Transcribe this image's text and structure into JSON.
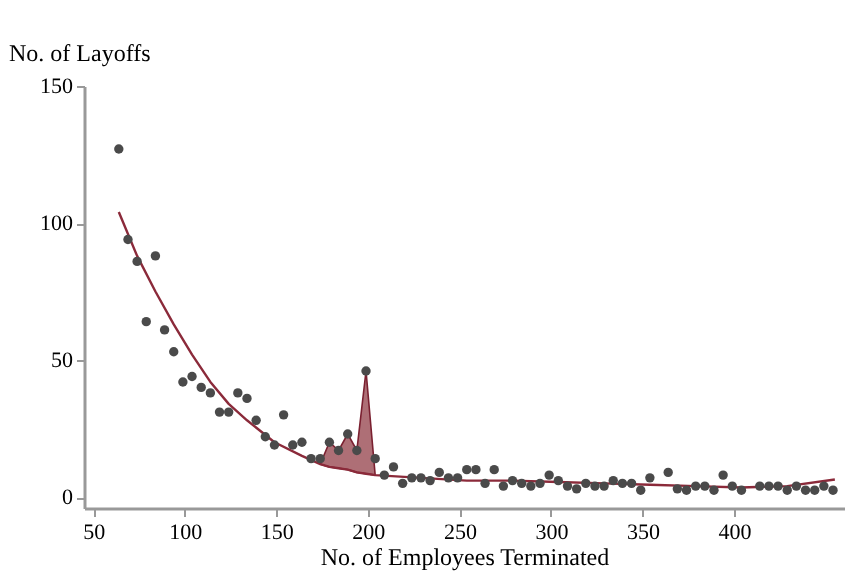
{
  "chart_data": {
    "type": "scatter",
    "xlabel": "No. of Employees Terminated",
    "ylabel": "No. of Layoffs",
    "xlim": [
      45,
      460
    ],
    "xticks": [
      50,
      100,
      150,
      200,
      250,
      300,
      350,
      400
    ],
    "ylim": [
      -4,
      150
    ],
    "yticks": [
      0,
      50,
      100,
      150
    ],
    "grid": false,
    "series": [
      {
        "marker": "circle",
        "color": "#4a4a4a",
        "x": [
          64,
          69,
          74,
          79,
          84,
          89,
          94,
          99,
          104,
          109,
          114,
          119,
          124,
          129,
          134,
          139,
          144,
          149,
          154,
          159,
          164,
          169,
          174,
          179,
          184,
          189,
          194,
          199,
          204,
          209,
          214,
          219,
          224,
          229,
          234,
          239,
          244,
          249,
          254,
          259,
          264,
          269,
          274,
          279,
          284,
          289,
          294,
          299,
          304,
          309,
          314,
          319,
          324,
          329,
          334,
          339,
          344,
          349,
          354,
          364,
          369,
          374,
          379,
          384,
          389,
          394,
          399,
          404,
          414,
          419,
          424,
          429,
          434,
          439,
          444,
          449,
          454
        ],
        "values": [
          127,
          94,
          86,
          64,
          88,
          61,
          53,
          42,
          44,
          40,
          38,
          31,
          31,
          38,
          36,
          28,
          22,
          19,
          30,
          19,
          20,
          14,
          14,
          20,
          17,
          23,
          17,
          46,
          14,
          8,
          11,
          5,
          7,
          7,
          6,
          9,
          7,
          7,
          10,
          10,
          5,
          10,
          4,
          6,
          5,
          4,
          5,
          8,
          6,
          4,
          3,
          5,
          4,
          4,
          6,
          5,
          5,
          2.5,
          7,
          9,
          3,
          2.5,
          4,
          4,
          2.5,
          8,
          4,
          2.5,
          4,
          4,
          4,
          2.5,
          4,
          2.5,
          2.5,
          4,
          2.5
        ]
      },
      {
        "type": "line",
        "color": "#8b2a3a",
        "x": [
          64,
          74,
          84,
          94,
          104,
          114,
          124,
          134,
          149,
          164,
          174,
          179,
          184,
          189,
          194,
          199,
          204,
          229,
          254,
          279,
          304,
          329,
          354,
          379,
          404,
          429,
          455
        ],
        "values": [
          104,
          88,
          75,
          63,
          52,
          42,
          34,
          28,
          20,
          15,
          12,
          11,
          10.5,
          10,
          9,
          8.5,
          8,
          7,
          6,
          6,
          5.5,
          5,
          4.5,
          4,
          3.5,
          4,
          6.4
        ],
        "lower": [
          null,
          null,
          null,
          null,
          null,
          null,
          null,
          null,
          null,
          null,
          12,
          11,
          10.5,
          10,
          9,
          8.5,
          8,
          null,
          null,
          null,
          null,
          null,
          null,
          null,
          null,
          null,
          null
        ],
        "upper": [
          null,
          null,
          null,
          null,
          null,
          null,
          null,
          null,
          null,
          null,
          12,
          20,
          17,
          23,
          17,
          46,
          8,
          null,
          null,
          null,
          null,
          null,
          null,
          null,
          null,
          null,
          null
        ]
      }
    ]
  }
}
